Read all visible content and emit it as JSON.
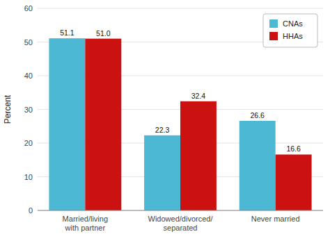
{
  "chart_data": {
    "type": "bar",
    "categories": [
      "Married/living\nwith partner",
      "Widowed/divorced/\nseparated",
      "Never married"
    ],
    "series": [
      {
        "name": "CNAs",
        "color": "#4DB8D4",
        "values": [
          51.1,
          22.3,
          26.6
        ]
      },
      {
        "name": "HHAs",
        "color": "#CC1111",
        "values": [
          51.0,
          32.4,
          16.6
        ],
        "value_labels": [
          "51.0",
          "32.4",
          "16.6"
        ]
      }
    ],
    "ylabel": "Percent",
    "ylim": [
      0,
      60
    ],
    "yticks": [
      0,
      10,
      20,
      30,
      40,
      50,
      60
    ],
    "grid": true,
    "legend": "upper right",
    "data_labels": true
  }
}
